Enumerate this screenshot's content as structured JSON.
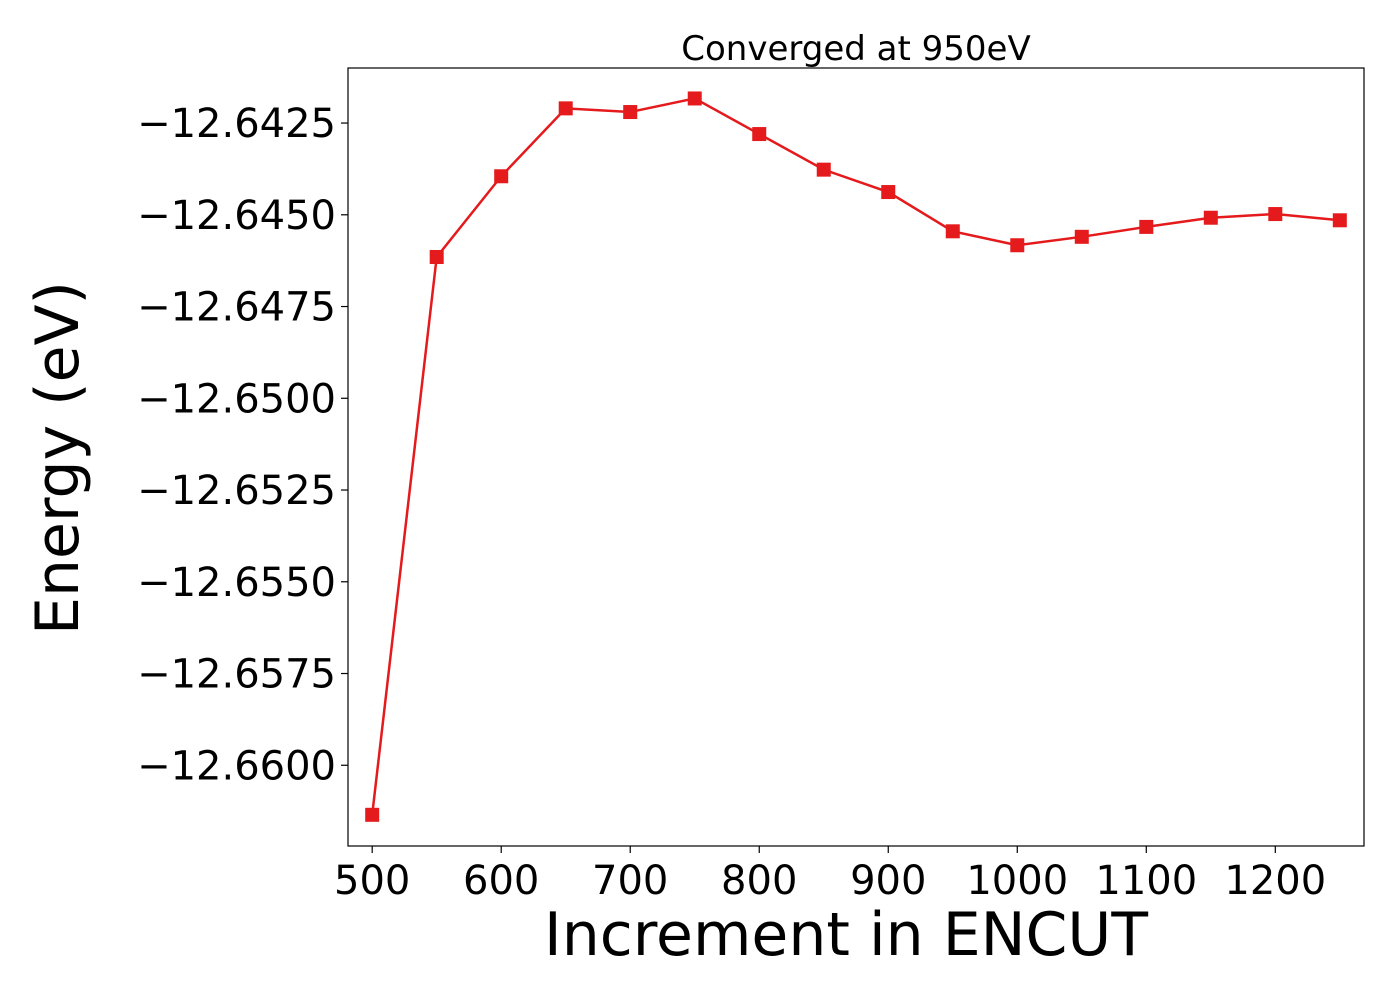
{
  "chart_data": {
    "type": "line",
    "title": "Converged at 950eV",
    "xlabel": "Increment in ENCUT",
    "ylabel": "Energy (eV)",
    "xlim": [
      481.25,
      1268.75
    ],
    "ylim": [
      -12.6622,
      -12.641
    ],
    "xticks": [
      500,
      600,
      700,
      800,
      900,
      1000,
      1100,
      1200
    ],
    "xtick_labels": [
      "500",
      "600",
      "700",
      "800",
      "900",
      "1000",
      "1100",
      "1200"
    ],
    "yticks": [
      -12.6425,
      -12.645,
      -12.6475,
      -12.65,
      -12.6525,
      -12.655,
      -12.6575,
      -12.66
    ],
    "ytick_labels": [
      "−12.6425",
      "−12.6450",
      "−12.6475",
      "−12.6500",
      "−12.6525",
      "−12.6550",
      "−12.6575",
      "−12.6600"
    ],
    "grid": false,
    "series": [
      {
        "color": "#e41a1c",
        "marker": "square",
        "x": [
          500,
          550,
          600,
          650,
          700,
          750,
          800,
          850,
          900,
          950,
          1000,
          1050,
          1100,
          1150,
          1200,
          1250
        ],
        "y": [
          -12.66135,
          -12.64615,
          -12.64395,
          -12.6421,
          -12.6422,
          -12.64183,
          -12.6428,
          -12.64377,
          -12.64438,
          -12.64545,
          -12.64583,
          -12.6456,
          -12.64533,
          -12.64508,
          -12.64498,
          -12.64515
        ]
      }
    ]
  }
}
